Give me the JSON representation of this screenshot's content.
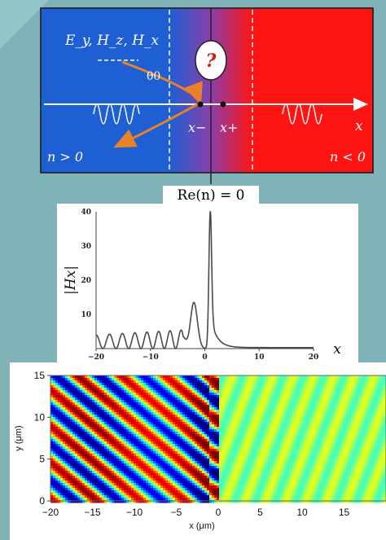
{
  "panel_a": {
    "field_label": "E_y, H_z, H_x",
    "angle_label": "θ0",
    "question_mark": "?",
    "x_minus": "x−",
    "x_plus": "x+",
    "x_axis": "x",
    "left_index": "n > 0",
    "right_index": "n < 0",
    "interface_label": "Re(n) = 0",
    "colors": {
      "positive": "#1e5fd4",
      "negative": "#ff1414",
      "ray": "#e8822a"
    }
  },
  "chart_data": [
    {
      "type": "line",
      "title": "",
      "xlabel": "x",
      "ylabel": "|Hx|",
      "xlim": [
        -20,
        20
      ],
      "ylim": [
        0,
        40
      ],
      "x_ticks": [
        -20,
        -10,
        0,
        10,
        20
      ],
      "y_ticks": [
        10,
        20,
        30,
        40
      ],
      "description_points": {
        "x": [
          -20,
          -16,
          -12,
          -8,
          -6,
          -4,
          -3,
          -2,
          -1,
          0,
          0.5,
          1,
          2,
          4,
          8,
          12,
          16,
          20
        ],
        "y": [
          4,
          4,
          4.5,
          5,
          6,
          9,
          12,
          13.5,
          10,
          14,
          25,
          40,
          10,
          4,
          1.5,
          0.8,
          0.5,
          0.3
        ]
      }
    },
    {
      "type": "heatmap",
      "title": "",
      "xlabel": "x (μm)",
      "ylabel": "y (μm)",
      "xlim": [
        -20,
        20
      ],
      "ylim": [
        0,
        15
      ],
      "x_ticks": [
        -20,
        -15,
        -10,
        -5,
        0,
        5,
        10,
        15
      ],
      "y_ticks": [
        0,
        5,
        10,
        15
      ],
      "colormap": "jet",
      "interface_x": 0
    }
  ]
}
